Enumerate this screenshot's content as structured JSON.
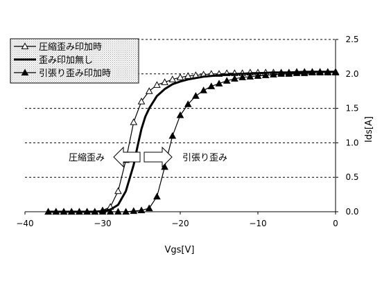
{
  "chart_data": {
    "type": "line",
    "xlabel": "Vgs[V]",
    "ylabel": "Ids[A]",
    "xlim": [
      -40,
      0
    ],
    "ylim": [
      0,
      2.5
    ],
    "x_ticks": [
      "−40",
      "−30",
      "−20",
      "−10",
      "0"
    ],
    "y_ticks": [
      "0.0",
      "0.5",
      "1.0",
      "1.5",
      "2.0",
      "2.5"
    ],
    "grid": "horizontal dashed",
    "legend_position": "top-left",
    "series": [
      {
        "name": "圧縮歪み印加時",
        "marker": "open-triangle",
        "line": "thin",
        "x": [
          -37,
          -36,
          -35,
          -34,
          -33,
          -32,
          -31,
          -30,
          -29,
          -28,
          -27,
          -26,
          -25,
          -24,
          -23,
          -22,
          -21,
          -20,
          -19,
          -18,
          -17,
          -16,
          -15,
          -14,
          -13,
          -12,
          -11,
          -10,
          -9,
          -8,
          -7,
          -6,
          -5,
          -4,
          -3,
          -2,
          -1,
          0
        ],
        "y": [
          0.0,
          0.0,
          0.0,
          0.0,
          0.0,
          0.0,
          0.0,
          0.02,
          0.07,
          0.3,
          0.75,
          1.3,
          1.6,
          1.75,
          1.84,
          1.88,
          1.92,
          1.95,
          1.97,
          1.98,
          1.99,
          2.0,
          2.0,
          2.01,
          2.01,
          2.01,
          2.02,
          2.02,
          2.02,
          2.02,
          2.02,
          2.02,
          2.03,
          2.03,
          2.03,
          2.03,
          2.03,
          2.03
        ]
      },
      {
        "name": "歪み印加無し",
        "marker": "none",
        "line": "thick",
        "x": [
          -37,
          -31,
          -30,
          -29,
          -28,
          -27,
          -26,
          -25.5,
          -25,
          -24.5,
          -24,
          -23,
          -22,
          -21,
          -20,
          -19,
          -18,
          -17,
          -16,
          -14,
          -12,
          -10,
          -8,
          -6,
          -4,
          -2,
          0
        ],
        "y": [
          0.0,
          0.0,
          0.01,
          0.03,
          0.1,
          0.3,
          0.68,
          0.95,
          1.2,
          1.38,
          1.5,
          1.68,
          1.78,
          1.85,
          1.89,
          1.92,
          1.94,
          1.96,
          1.97,
          1.99,
          2.0,
          2.01,
          2.02,
          2.02,
          2.03,
          2.03,
          2.03
        ]
      },
      {
        "name": "引張り歪み印加時",
        "marker": "filled-triangle",
        "line": "thin",
        "x": [
          -37,
          -36,
          -35,
          -34,
          -33,
          -32,
          -31,
          -30,
          -29,
          -28,
          -27,
          -26,
          -25,
          -24,
          -23,
          -22,
          -21,
          -20,
          -19,
          -18,
          -17,
          -16,
          -15,
          -14,
          -13,
          -12,
          -11,
          -10,
          -9,
          -8,
          -7,
          -6,
          -5,
          -4,
          -3,
          -2,
          -1,
          0
        ],
        "y": [
          0.0,
          0.0,
          0.0,
          0.0,
          0.0,
          0.0,
          0.0,
          0.0,
          0.0,
          0.0,
          0.0,
          0.01,
          0.02,
          0.05,
          0.22,
          0.65,
          1.1,
          1.4,
          1.56,
          1.68,
          1.76,
          1.82,
          1.86,
          1.9,
          1.93,
          1.95,
          1.96,
          1.97,
          1.98,
          1.99,
          2.0,
          2.0,
          2.01,
          2.01,
          2.02,
          2.02,
          2.02,
          2.02
        ]
      }
    ],
    "annotations": {
      "left_arrow_label": "圧縮歪み",
      "right_arrow_label": "引張り歪み"
    }
  }
}
